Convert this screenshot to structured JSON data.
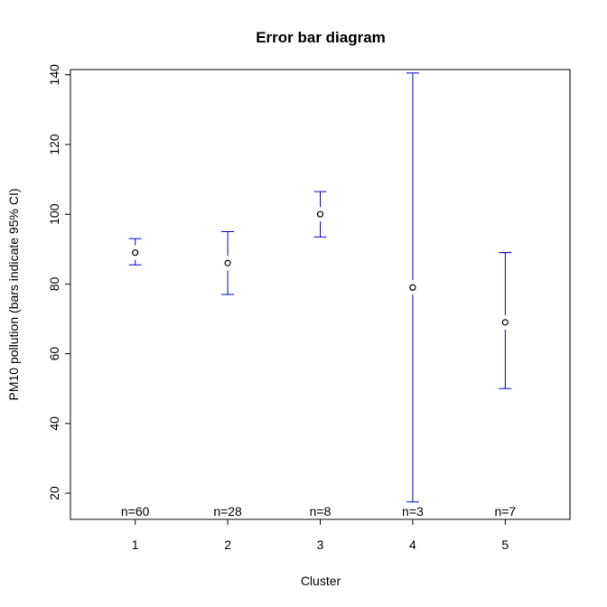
{
  "chart_data": {
    "type": "errorbar",
    "title": "Error bar diagram",
    "xlabel": "Cluster",
    "ylabel": "PM10 pollution (bars indicate 95% CI)",
    "categories": [
      "1",
      "2",
      "3",
      "4",
      "5"
    ],
    "means": [
      89,
      86,
      100,
      79,
      69
    ],
    "lower": [
      85.5,
      77,
      93.5,
      17.5,
      50
    ],
    "upper": [
      93,
      95,
      106.5,
      140.5,
      89
    ],
    "n_labels": [
      "n=60",
      "n=28",
      "n=8",
      "n=3",
      "n=7"
    ],
    "yticks": [
      20,
      40,
      60,
      80,
      100,
      120,
      140
    ],
    "ylim": [
      12.5,
      141.5
    ],
    "xlim": [
      0.3,
      5.7
    ],
    "grid": false,
    "colors": {
      "errorbar": "#0000cc",
      "point": "#000000",
      "axis": "#000000"
    }
  }
}
